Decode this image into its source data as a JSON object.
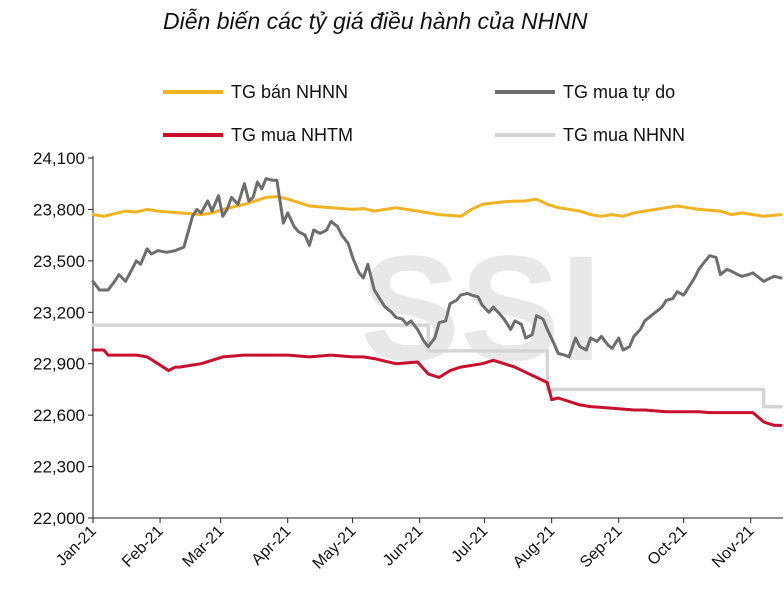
{
  "chart_data": {
    "type": "line",
    "title": "Diễn biến các tỷ giá điều hành của NHNN",
    "watermark": "SSI",
    "xlabel": "",
    "ylabel": "",
    "ylim": [
      22000,
      24100
    ],
    "yticks": [
      "22,000",
      "22,300",
      "22,600",
      "22,900",
      "23,200",
      "23,500",
      "23,800",
      "24,100"
    ],
    "yticks_values": [
      22000,
      22300,
      22600,
      22900,
      23200,
      23500,
      23800,
      24100
    ],
    "xticks": [
      "Jan-21",
      "Feb-21",
      "Mar-21",
      "Apr-21",
      "May-21",
      "Jun-21",
      "Jul-21",
      "Aug-21",
      "Sep-21",
      "Oct-21",
      "Nov-21"
    ],
    "xlim_days": [
      0,
      318
    ],
    "legend": [
      {
        "name": "TG bán NHNN",
        "color": "#f0b323"
      },
      {
        "name": "TG mua tự do",
        "color": "#6d6d6d"
      },
      {
        "name": "TG mua NHTM",
        "color": "#c8102e"
      },
      {
        "name": "TG mua NHNN",
        "color": "#d5d5d5"
      }
    ],
    "series": [
      {
        "name": "TG bán NHNN",
        "color": "#f0b323",
        "x": [
          0,
          5,
          10,
          15,
          20,
          25,
          30,
          40,
          50,
          55,
          60,
          70,
          80,
          85,
          90,
          100,
          110,
          120,
          125,
          130,
          140,
          150,
          155,
          160,
          170,
          175,
          180,
          190,
          200,
          205,
          210,
          215,
          220,
          225,
          230,
          235,
          240,
          245,
          250,
          255,
          260,
          265,
          270,
          275,
          280,
          290,
          295,
          300,
          305,
          310,
          318
        ],
        "values": [
          23770,
          23760,
          23775,
          23790,
          23785,
          23800,
          23790,
          23780,
          23770,
          23780,
          23800,
          23830,
          23870,
          23875,
          23860,
          23820,
          23810,
          23800,
          23805,
          23790,
          23810,
          23790,
          23780,
          23770,
          23760,
          23800,
          23830,
          23845,
          23850,
          23860,
          23830,
          23810,
          23800,
          23790,
          23770,
          23760,
          23770,
          23760,
          23780,
          23790,
          23800,
          23810,
          23820,
          23810,
          23800,
          23790,
          23770,
          23780,
          23770,
          23760,
          23770
        ]
      },
      {
        "name": "TG mua tự do",
        "color": "#6d6d6d",
        "x": [
          0,
          3,
          7,
          10,
          12,
          15,
          18,
          20,
          22,
          25,
          27,
          30,
          34,
          38,
          42,
          46,
          48,
          50,
          53,
          55,
          58,
          60,
          62,
          64,
          67,
          70,
          72,
          74,
          76,
          78,
          80,
          83,
          85,
          88,
          90,
          93,
          95,
          98,
          100,
          102,
          105,
          108,
          110,
          113,
          115,
          118,
          120,
          123,
          125,
          127,
          130,
          133,
          135,
          138,
          140,
          143,
          145,
          147,
          150,
          153,
          155,
          158,
          160,
          163,
          165,
          168,
          170,
          173,
          175,
          178,
          180,
          183,
          185,
          188,
          190,
          193,
          195,
          198,
          200,
          203,
          205,
          208,
          210,
          213,
          215,
          218,
          220,
          223,
          225,
          228,
          230,
          233,
          235,
          238,
          240,
          243,
          245,
          248,
          250,
          253,
          255,
          258,
          260,
          263,
          265,
          268,
          270,
          273,
          275,
          278,
          280,
          283,
          285,
          288,
          290,
          293,
          295,
          298,
          300,
          303,
          305,
          308,
          310,
          313,
          315,
          318
        ],
        "values": [
          23380,
          23330,
          23330,
          23380,
          23420,
          23380,
          23450,
          23500,
          23480,
          23570,
          23540,
          23560,
          23550,
          23560,
          23580,
          23760,
          23800,
          23780,
          23850,
          23790,
          23880,
          23760,
          23800,
          23870,
          23830,
          23950,
          23850,
          23870,
          23960,
          23920,
          23980,
          23970,
          23970,
          23720,
          23780,
          23700,
          23670,
          23650,
          23590,
          23680,
          23660,
          23680,
          23730,
          23700,
          23650,
          23600,
          23520,
          23430,
          23400,
          23480,
          23330,
          23270,
          23230,
          23200,
          23170,
          23160,
          23130,
          23150,
          23100,
          23030,
          23000,
          23050,
          23140,
          23150,
          23250,
          23270,
          23300,
          23310,
          23300,
          23290,
          23240,
          23200,
          23230,
          23190,
          23160,
          23100,
          23150,
          23130,
          23050,
          23070,
          23180,
          23160,
          23100,
          23020,
          22960,
          22950,
          22940,
          23050,
          23000,
          22980,
          23050,
          23030,
          23060,
          23010,
          22990,
          23050,
          22980,
          23000,
          23060,
          23100,
          23150,
          23180,
          23200,
          23230,
          23270,
          23280,
          23320,
          23300,
          23340,
          23400,
          23450,
          23500,
          23530,
          23520,
          23420,
          23450,
          23440,
          23420,
          23410,
          23420,
          23430,
          23400,
          23380,
          23400,
          23410,
          23400
        ]
      },
      {
        "name": "TG mua NHTM",
        "color": "#c8102e",
        "x": [
          0,
          5,
          7,
          10,
          15,
          20,
          25,
          30,
          35,
          38,
          40,
          45,
          50,
          55,
          60,
          70,
          80,
          90,
          100,
          110,
          120,
          125,
          130,
          140,
          150,
          155,
          160,
          165,
          170,
          175,
          180,
          185,
          190,
          195,
          200,
          205,
          210,
          212,
          215,
          220,
          225,
          230,
          235,
          240,
          245,
          250,
          255,
          260,
          265,
          270,
          275,
          280,
          285,
          290,
          295,
          300,
          305,
          310,
          315,
          318
        ],
        "values": [
          22980,
          22980,
          22950,
          22950,
          22950,
          22950,
          22940,
          22900,
          22860,
          22880,
          22880,
          22890,
          22900,
          22920,
          22940,
          22950,
          22950,
          22950,
          22940,
          22950,
          22940,
          22940,
          22930,
          22900,
          22910,
          22840,
          22820,
          22860,
          22880,
          22890,
          22900,
          22920,
          22900,
          22880,
          22850,
          22820,
          22790,
          22690,
          22700,
          22680,
          22660,
          22650,
          22645,
          22640,
          22635,
          22630,
          22630,
          22625,
          22620,
          22620,
          22620,
          22620,
          22615,
          22615,
          22615,
          22615,
          22615,
          22560,
          22540,
          22540
        ]
      },
      {
        "name": "TG mua NHNN",
        "color": "#d5d5d5",
        "step": true,
        "x": [
          0,
          155,
          155,
          210,
          210,
          310,
          310,
          318
        ],
        "values": [
          23125,
          23125,
          22975,
          22975,
          22750,
          22750,
          22650,
          22650
        ]
      }
    ]
  }
}
